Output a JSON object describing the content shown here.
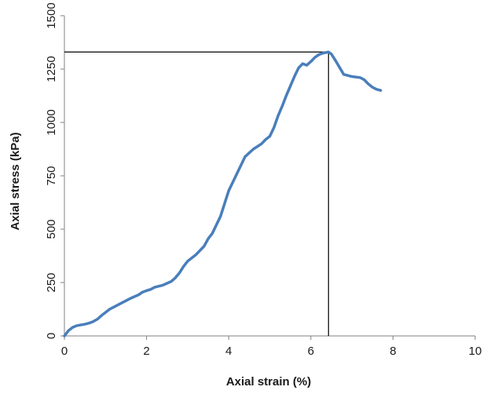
{
  "chart_data": {
    "type": "line",
    "title": "",
    "xlabel": "Axial strain (%)",
    "ylabel": "Axial stress (kPa)",
    "xlim": [
      0,
      10
    ],
    "ylim": [
      0,
      1500
    ],
    "xticks": [
      "0",
      "2",
      "4",
      "6",
      "8",
      "10"
    ],
    "yticks": [
      "0",
      "250",
      "500",
      "750",
      "1000",
      "1250",
      "1500"
    ],
    "grid": false,
    "legend": "none",
    "peak": {
      "x": 6.43,
      "y": 1330
    },
    "series": [
      {
        "color": "#4a7ebb",
        "x": [
          0,
          0.1,
          0.2,
          0.3,
          0.5,
          0.6,
          0.7,
          0.8,
          0.9,
          1.0,
          1.1,
          1.2,
          1.4,
          1.6,
          1.8,
          1.9,
          2.0,
          2.1,
          2.2,
          2.4,
          2.6,
          2.7,
          2.8,
          2.9,
          3.0,
          3.2,
          3.4,
          3.5,
          3.6,
          3.8,
          4.0,
          4.2,
          4.3,
          4.4,
          4.6,
          4.8,
          4.9,
          5.0,
          5.1,
          5.2,
          5.3,
          5.4,
          5.6,
          5.7,
          5.8,
          5.9,
          6.0,
          6.1,
          6.2,
          6.3,
          6.43,
          6.5,
          6.6,
          6.8,
          6.9,
          7.0,
          7.2,
          7.3,
          7.4,
          7.5,
          7.6,
          7.7
        ],
        "y": [
          0,
          25,
          40,
          48,
          55,
          60,
          67,
          78,
          95,
          110,
          125,
          135,
          155,
          175,
          192,
          205,
          212,
          218,
          228,
          238,
          255,
          272,
          295,
          325,
          350,
          380,
          420,
          455,
          480,
          560,
          680,
          760,
          800,
          840,
          875,
          900,
          920,
          935,
          975,
          1030,
          1075,
          1125,
          1215,
          1255,
          1275,
          1268,
          1285,
          1305,
          1318,
          1325,
          1330,
          1320,
          1290,
          1225,
          1220,
          1215,
          1210,
          1200,
          1180,
          1165,
          1155,
          1150
        ]
      }
    ]
  }
}
